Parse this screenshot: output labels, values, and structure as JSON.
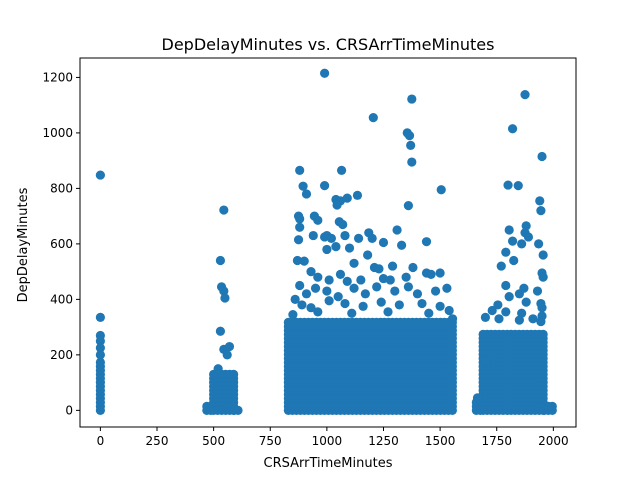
{
  "chart_data": {
    "type": "scatter",
    "title": "DepDelayMinutes vs. CRSArrTimeMinutes",
    "xlabel": "CRSArrTimeMinutes",
    "ylabel": "DepDelayMinutes",
    "xlim": [
      -90,
      2100
    ],
    "ylim": [
      -60,
      1270
    ],
    "x_ticks": [
      0,
      250,
      500,
      750,
      1000,
      1250,
      1500,
      1750,
      2000
    ],
    "y_ticks": [
      0,
      200,
      400,
      600,
      800,
      1000,
      1200
    ],
    "grid": false,
    "marker_color": "#1f77b4",
    "clusters": [
      {
        "x_range": [
          0,
          10
        ],
        "y_max": 180
      },
      {
        "x_range": [
          470,
          500
        ],
        "y_max": 15
      },
      {
        "x_range": [
          500,
          590
        ],
        "y_max": 130
      },
      {
        "x_range": [
          590,
          620
        ],
        "y_max": 10
      },
      {
        "x_range": [
          830,
          1560
        ],
        "y_max": 330
      },
      {
        "x_range": [
          1660,
          1680
        ],
        "y_max": 40
      },
      {
        "x_range": [
          1690,
          1960
        ],
        "y_max": 280
      },
      {
        "x_range": [
          1960,
          2010
        ],
        "y_max": 15
      }
    ],
    "points": [
      {
        "x": 0,
        "y": 848
      },
      {
        "x": 0,
        "y": 335
      },
      {
        "x": 0,
        "y": 270
      },
      {
        "x": 0,
        "y": 250
      },
      {
        "x": 0,
        "y": 225
      },
      {
        "x": 0,
        "y": 200
      },
      {
        "x": 545,
        "y": 722
      },
      {
        "x": 530,
        "y": 540
      },
      {
        "x": 535,
        "y": 445
      },
      {
        "x": 545,
        "y": 430
      },
      {
        "x": 550,
        "y": 405
      },
      {
        "x": 530,
        "y": 285
      },
      {
        "x": 545,
        "y": 220
      },
      {
        "x": 570,
        "y": 230
      },
      {
        "x": 520,
        "y": 150
      },
      {
        "x": 560,
        "y": 200
      },
      {
        "x": 990,
        "y": 1215
      },
      {
        "x": 1205,
        "y": 1055
      },
      {
        "x": 1375,
        "y": 1122
      },
      {
        "x": 1355,
        "y": 1000
      },
      {
        "x": 1365,
        "y": 990
      },
      {
        "x": 1370,
        "y": 955
      },
      {
        "x": 1375,
        "y": 895
      },
      {
        "x": 1505,
        "y": 795
      },
      {
        "x": 1360,
        "y": 738
      },
      {
        "x": 880,
        "y": 865
      },
      {
        "x": 1065,
        "y": 865
      },
      {
        "x": 895,
        "y": 808
      },
      {
        "x": 990,
        "y": 810
      },
      {
        "x": 910,
        "y": 780
      },
      {
        "x": 1040,
        "y": 760
      },
      {
        "x": 1060,
        "y": 755
      },
      {
        "x": 1090,
        "y": 765
      },
      {
        "x": 1135,
        "y": 775
      },
      {
        "x": 1045,
        "y": 740
      },
      {
        "x": 875,
        "y": 700
      },
      {
        "x": 880,
        "y": 690
      },
      {
        "x": 945,
        "y": 700
      },
      {
        "x": 960,
        "y": 685
      },
      {
        "x": 1055,
        "y": 680
      },
      {
        "x": 1070,
        "y": 670
      },
      {
        "x": 1185,
        "y": 640
      },
      {
        "x": 1310,
        "y": 650
      },
      {
        "x": 880,
        "y": 660
      },
      {
        "x": 875,
        "y": 615
      },
      {
        "x": 940,
        "y": 630
      },
      {
        "x": 990,
        "y": 625
      },
      {
        "x": 1000,
        "y": 630
      },
      {
        "x": 1020,
        "y": 620
      },
      {
        "x": 1080,
        "y": 630
      },
      {
        "x": 1140,
        "y": 620
      },
      {
        "x": 1200,
        "y": 620
      },
      {
        "x": 1250,
        "y": 605
      },
      {
        "x": 1330,
        "y": 595
      },
      {
        "x": 1440,
        "y": 608
      },
      {
        "x": 1000,
        "y": 580
      },
      {
        "x": 1040,
        "y": 590
      },
      {
        "x": 1100,
        "y": 585
      },
      {
        "x": 1180,
        "y": 560
      },
      {
        "x": 870,
        "y": 540
      },
      {
        "x": 900,
        "y": 538
      },
      {
        "x": 1120,
        "y": 530
      },
      {
        "x": 1210,
        "y": 515
      },
      {
        "x": 1230,
        "y": 510
      },
      {
        "x": 1290,
        "y": 520
      },
      {
        "x": 1380,
        "y": 515
      },
      {
        "x": 930,
        "y": 500
      },
      {
        "x": 960,
        "y": 480
      },
      {
        "x": 1010,
        "y": 470
      },
      {
        "x": 1060,
        "y": 490
      },
      {
        "x": 1090,
        "y": 465
      },
      {
        "x": 1150,
        "y": 470
      },
      {
        "x": 1250,
        "y": 475
      },
      {
        "x": 1280,
        "y": 470
      },
      {
        "x": 1350,
        "y": 480
      },
      {
        "x": 1440,
        "y": 495
      },
      {
        "x": 1460,
        "y": 490
      },
      {
        "x": 1500,
        "y": 495
      },
      {
        "x": 880,
        "y": 450
      },
      {
        "x": 910,
        "y": 420
      },
      {
        "x": 950,
        "y": 440
      },
      {
        "x": 1000,
        "y": 430
      },
      {
        "x": 1050,
        "y": 410
      },
      {
        "x": 1120,
        "y": 440
      },
      {
        "x": 1170,
        "y": 420
      },
      {
        "x": 1220,
        "y": 445
      },
      {
        "x": 1300,
        "y": 430
      },
      {
        "x": 1360,
        "y": 445
      },
      {
        "x": 1400,
        "y": 420
      },
      {
        "x": 1480,
        "y": 430
      },
      {
        "x": 1530,
        "y": 440
      },
      {
        "x": 860,
        "y": 400
      },
      {
        "x": 890,
        "y": 380
      },
      {
        "x": 930,
        "y": 370
      },
      {
        "x": 1010,
        "y": 395
      },
      {
        "x": 1080,
        "y": 385
      },
      {
        "x": 1160,
        "y": 375
      },
      {
        "x": 1240,
        "y": 390
      },
      {
        "x": 1320,
        "y": 380
      },
      {
        "x": 1420,
        "y": 385
      },
      {
        "x": 1500,
        "y": 375
      },
      {
        "x": 1540,
        "y": 360
      },
      {
        "x": 850,
        "y": 345
      },
      {
        "x": 960,
        "y": 355
      },
      {
        "x": 1110,
        "y": 350
      },
      {
        "x": 1270,
        "y": 355
      },
      {
        "x": 1450,
        "y": 350
      },
      {
        "x": 1555,
        "y": 330
      },
      {
        "x": 1545,
        "y": 150
      },
      {
        "x": 1875,
        "y": 1138
      },
      {
        "x": 1820,
        "y": 1015
      },
      {
        "x": 1950,
        "y": 915
      },
      {
        "x": 1800,
        "y": 812
      },
      {
        "x": 1845,
        "y": 810
      },
      {
        "x": 1940,
        "y": 755
      },
      {
        "x": 1945,
        "y": 720
      },
      {
        "x": 1880,
        "y": 665
      },
      {
        "x": 1805,
        "y": 650
      },
      {
        "x": 1875,
        "y": 640
      },
      {
        "x": 1890,
        "y": 625
      },
      {
        "x": 1820,
        "y": 610
      },
      {
        "x": 1860,
        "y": 600
      },
      {
        "x": 1935,
        "y": 600
      },
      {
        "x": 1790,
        "y": 570
      },
      {
        "x": 1955,
        "y": 560
      },
      {
        "x": 1825,
        "y": 540
      },
      {
        "x": 1770,
        "y": 520
      },
      {
        "x": 1950,
        "y": 495
      },
      {
        "x": 1955,
        "y": 480
      },
      {
        "x": 1790,
        "y": 450
      },
      {
        "x": 1870,
        "y": 440
      },
      {
        "x": 1930,
        "y": 430
      },
      {
        "x": 1805,
        "y": 410
      },
      {
        "x": 1850,
        "y": 420
      },
      {
        "x": 1755,
        "y": 380
      },
      {
        "x": 1880,
        "y": 390
      },
      {
        "x": 1945,
        "y": 385
      },
      {
        "x": 1950,
        "y": 370
      },
      {
        "x": 1730,
        "y": 360
      },
      {
        "x": 1790,
        "y": 355
      },
      {
        "x": 1860,
        "y": 350
      },
      {
        "x": 1950,
        "y": 340
      },
      {
        "x": 1700,
        "y": 335
      },
      {
        "x": 1760,
        "y": 330
      },
      {
        "x": 1850,
        "y": 325
      },
      {
        "x": 1910,
        "y": 330
      },
      {
        "x": 1945,
        "y": 320
      },
      {
        "x": 1700,
        "y": 180
      },
      {
        "x": 1665,
        "y": 45
      }
    ]
  }
}
